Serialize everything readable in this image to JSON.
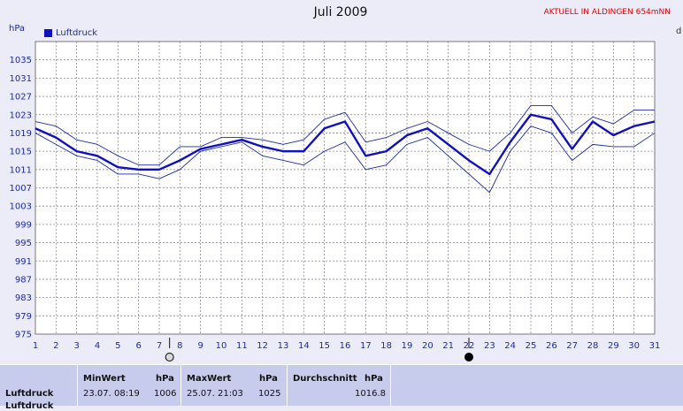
{
  "title": "Juli 2009",
  "badge": "AKTUELL IN ALDINGEN 654mNN",
  "unit_label": "hPa",
  "legend_label": "Luftdruck",
  "cut_text": "d",
  "colors": {
    "main_line": "#1010c0",
    "minmax_line": "#1a2ab0",
    "grid": "#8a8a9a",
    "plot_bg": "#ffffff"
  },
  "chart_data": {
    "type": "line",
    "x": [
      1,
      2,
      3,
      4,
      5,
      6,
      7,
      8,
      9,
      10,
      11,
      12,
      13,
      14,
      15,
      16,
      17,
      18,
      19,
      20,
      21,
      22,
      23,
      24,
      25,
      26,
      27,
      28,
      29,
      30,
      31
    ],
    "ylim": [
      975,
      1039
    ],
    "yticks": [
      975,
      979,
      983,
      987,
      991,
      995,
      999,
      1003,
      1007,
      1011,
      1015,
      1019,
      1023,
      1027,
      1031,
      1035
    ],
    "series": [
      {
        "name": "Luftdruck",
        "values": [
          1020,
          1018,
          1015,
          1014,
          1011.5,
          1011,
          1011,
          1013,
          1015.5,
          1016.5,
          1017.5,
          1016,
          1015,
          1015,
          1020,
          1021.5,
          1014,
          1015,
          1018.5,
          1020,
          1016.5,
          1013,
          1010,
          1017,
          1023,
          1022,
          1015.5,
          1021.5,
          1018.5,
          1020.5,
          1021.5
        ]
      },
      {
        "name": "",
        "values": [
          1021.5,
          1020.5,
          1017.5,
          1016.5,
          1014,
          1012,
          1012,
          1016,
          1016,
          1018,
          1018,
          1017.5,
          1016.5,
          1017.5,
          1022,
          1023.5,
          1017,
          1018,
          1020,
          1021.5,
          1019,
          1016.5,
          1015,
          1019,
          1025,
          1025,
          1019,
          1022.5,
          1021,
          1024,
          1024
        ]
      },
      {
        "name": "",
        "values": [
          1019,
          1016.5,
          1014,
          1013,
          1010,
          1010,
          1009,
          1011,
          1015,
          1016,
          1017,
          1014,
          1013,
          1012,
          1015,
          1017,
          1011,
          1012,
          1016.5,
          1018,
          1014,
          1010,
          1006,
          1015,
          1020.5,
          1019,
          1013,
          1016.5,
          1016,
          1016,
          1019
        ]
      }
    ],
    "markers": [
      {
        "x": 7.5,
        "type": "new-moon-open"
      },
      {
        "x": 22,
        "type": "full-moon-filled"
      }
    ]
  },
  "stats": {
    "row_label": "Luftdruck",
    "row_label_2": "Luftdruck",
    "min": {
      "header": "MinWert",
      "unit": "hPa",
      "datetime": "23.07.  08:19",
      "value": "1006"
    },
    "max": {
      "header": "MaxWert",
      "unit": "hPa",
      "datetime": "25.07.  21:03",
      "value": "1025"
    },
    "avg": {
      "header": "Durchschnitt",
      "unit": "hPa",
      "value": "1016.8"
    }
  }
}
